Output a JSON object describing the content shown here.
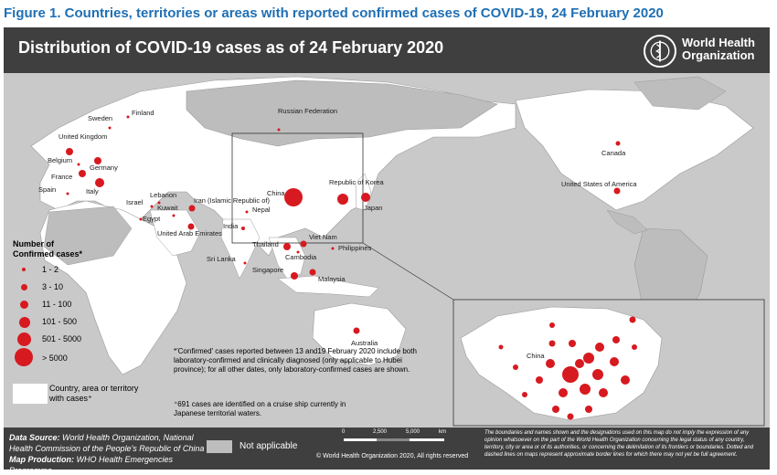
{
  "figure_title": "Figure 1. Countries, territories or areas with reported confirmed cases of COVID-19, 24 February 2020",
  "banner": {
    "title": "Distribution of COVID-19 cases as of 24 February 2020",
    "org_line1": "World Health",
    "org_line2": "Organization"
  },
  "colors": {
    "marker": "#d71920",
    "land": "#ffffff",
    "ocean": "#c9c9c9",
    "banner": "#3f3f3f",
    "not_applicable": "#bdbdbd",
    "title": "#1f6fb4"
  },
  "legend": {
    "title_line1": "Number of",
    "title_line2": "Confirmed cases*",
    "items": [
      {
        "label": "1 - 2"
      },
      {
        "label": "3 - 10"
      },
      {
        "label": "11 - 100"
      },
      {
        "label": "101 - 500"
      },
      {
        "label": "501 - 5000"
      },
      {
        "label": "> 5000"
      }
    ],
    "white_label": "Country, area or territory with cases⁺"
  },
  "notes": {
    "confirmed": "*'Confirmed' cases reported between 13 and19 February 2020 include both laboratory-confirmed and clinically diagnosed (only applicable to Hubei province); for all other dates, only laboratory-confirmed cases are shown.",
    "cruise": "⁺691 cases are identified on a cruise ship currently in Japanese territorial waters."
  },
  "countries": [
    "Sweden",
    "Finland",
    "United Kingdom",
    "Belgium",
    "Germany",
    "France",
    "Spain",
    "Italy",
    "Israel",
    "Lebanon",
    "Kuwait",
    "Egypt",
    "Iran (Islamic Republic of)",
    "United Arab Emirates",
    "Russian Federation",
    "China",
    "Nepal",
    "India",
    "Sri Lanka",
    "Thailand",
    "Viet Nam",
    "Cambodia",
    "Singapore",
    "Malaysia",
    "Philippines",
    "Republic of Korea",
    "Japan",
    "Australia",
    "Canada",
    "United States of America"
  ],
  "inset_label": "China",
  "footer": {
    "data_source_label": "Data Source:",
    "data_source": " World Health Organization, National Health Commission of the People's Republic of China",
    "map_production_label": "Map Production:",
    "map_production": " WHO Health Emergencies Programme",
    "not_applicable": "Not applicable",
    "scale_0": "0",
    "scale_1": "2,500",
    "scale_2": "5,000",
    "scale_unit": "km",
    "copyright": "© World Health Organization 2020, All rights reserved",
    "disclaimer": "The boundaries and names shown and the designations used on this map do not imply the expression of any opinion whatsoever on the part of the World Health Organization concerning the legal status of any country, territory, city or area or of its authorities, or concerning the delimitation of its frontiers or boundaries. Dotted and dashed lines on maps represent approximate border lines for which there may not yet be full agreement."
  }
}
